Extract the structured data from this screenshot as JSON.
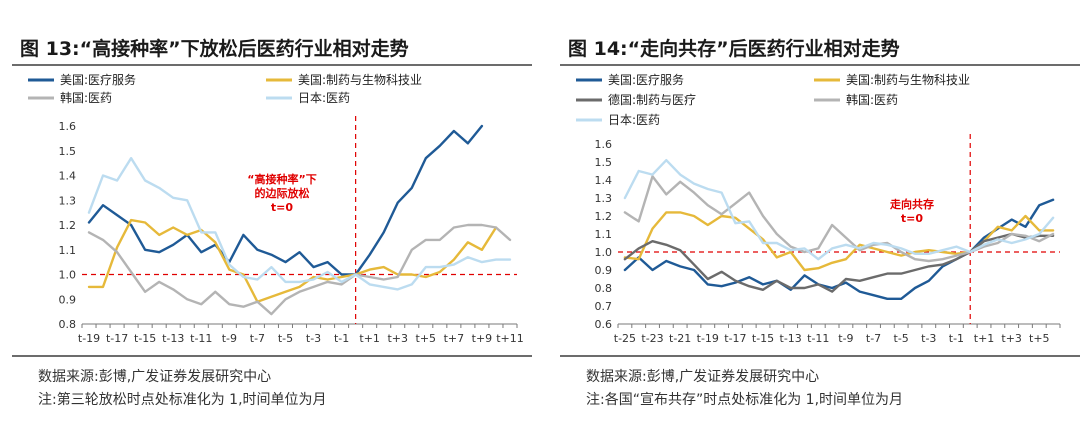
{
  "chart_data": [
    {
      "type": "line",
      "title": "图 13:“高接种率”下放松后医药行业相对走势",
      "source": "数据来源:彭博,广发证券发展研究中心",
      "note": "注:第三轮放松时点处标准化为 1,时间单位为月",
      "x": [
        "t-19",
        "t-18",
        "t-17",
        "t-16",
        "t-15",
        "t-14",
        "t-13",
        "t-12",
        "t-11",
        "t-10",
        "t-9",
        "t-8",
        "t-7",
        "t-6",
        "t-5",
        "t-4",
        "t-3",
        "t-2",
        "t-1",
        "t=0",
        "t+1",
        "t+2",
        "t+3",
        "t+4",
        "t+5",
        "t+6",
        "t+7",
        "t+8",
        "t+9",
        "t+10",
        "t+11"
      ],
      "x_tick_labels": [
        "t-19",
        "t-17",
        "t-15",
        "t-13",
        "t-11",
        "t-9",
        "t-7",
        "t-5",
        "t-3",
        "t-1",
        "t+1",
        "t+3",
        "t+5",
        "t+7",
        "t+9",
        "t+11"
      ],
      "ylim": [
        0.8,
        1.6
      ],
      "y_ticks": [
        "0.8",
        "0.9",
        "1.0",
        "1.1",
        "1.2",
        "1.3",
        "1.4",
        "1.5",
        "1.6"
      ],
      "legend_columns": 2,
      "series": [
        {
          "name": "美国:医疗服务",
          "color": "#1f5a96",
          "values": [
            1.21,
            1.28,
            1.24,
            1.2,
            1.1,
            1.09,
            1.12,
            1.16,
            1.09,
            1.12,
            1.05,
            1.16,
            1.1,
            1.08,
            1.05,
            1.09,
            1.03,
            1.05,
            1.0,
            1.0,
            1.08,
            1.17,
            1.29,
            1.35,
            1.47,
            1.52,
            1.58,
            1.53,
            1.6,
            null,
            null
          ]
        },
        {
          "name": "美国:制药与生物科技业",
          "color": "#e6b93a",
          "values": [
            0.95,
            0.95,
            1.11,
            1.22,
            1.21,
            1.16,
            1.19,
            1.16,
            1.18,
            1.13,
            1.02,
            1.0,
            0.89,
            0.91,
            0.93,
            0.95,
            0.99,
            0.98,
            0.99,
            1.0,
            1.02,
            1.03,
            1.0,
            1.0,
            0.99,
            1.01,
            1.06,
            1.13,
            1.1,
            1.19,
            null
          ]
        },
        {
          "name": "韩国:医药",
          "color": "#b4b4b4",
          "values": [
            1.17,
            1.14,
            1.09,
            1.01,
            0.93,
            0.97,
            0.94,
            0.9,
            0.88,
            0.93,
            0.88,
            0.87,
            0.89,
            0.84,
            0.9,
            0.93,
            0.95,
            0.97,
            0.96,
            1.0,
            0.99,
            0.98,
            0.99,
            1.1,
            1.14,
            1.14,
            1.19,
            1.2,
            1.2,
            1.19,
            1.14
          ]
        },
        {
          "name": "日本:医药",
          "color": "#bcdcf0",
          "values": [
            1.25,
            1.4,
            1.38,
            1.47,
            1.38,
            1.35,
            1.31,
            1.3,
            1.17,
            1.17,
            1.04,
            0.99,
            0.98,
            1.03,
            0.97,
            0.97,
            0.98,
            1.01,
            0.97,
            1.0,
            0.96,
            0.95,
            0.94,
            0.96,
            1.03,
            1.03,
            1.04,
            1.07,
            1.05,
            1.06,
            1.06
          ]
        }
      ],
      "vline_at": "t=0",
      "hline_at": 1.0,
      "annotation": [
        "“高接种率”下",
        "的边际放松",
        "t=0"
      ]
    },
    {
      "type": "line",
      "title": "图 14:“走向共存”后医药行业相对走势",
      "source": "数据来源:彭博,广发证券发展研究中心",
      "note": "注:各国“宣布共存”时点处标准化为 1,时间单位为月",
      "x": [
        "t-25",
        "t-24",
        "t-23",
        "t-22",
        "t-21",
        "t-20",
        "t-19",
        "t-18",
        "t-17",
        "t-16",
        "t-15",
        "t-14",
        "t-13",
        "t-12",
        "t-11",
        "t-10",
        "t-9",
        "t-8",
        "t-7",
        "t-6",
        "t-5",
        "t-4",
        "t-3",
        "t-2",
        "t-1",
        "t=0",
        "t+1",
        "t+2",
        "t+3",
        "t+4",
        "t+5",
        "t+6"
      ],
      "x_tick_labels": [
        "t-25",
        "t-23",
        "t-21",
        "t-19",
        "t-17",
        "t-15",
        "t-13",
        "t-11",
        "t-9",
        "t-7",
        "t-5",
        "t-3",
        "t-1",
        "t+1",
        "t+3",
        "t+5"
      ],
      "ylim": [
        0.6,
        1.6
      ],
      "y_ticks": [
        "0.6",
        "0.7",
        "0.8",
        "0.9",
        "1.0",
        "1.1",
        "1.2",
        "1.3",
        "1.4",
        "1.5",
        "1.6"
      ],
      "legend_columns": 2,
      "series": [
        {
          "name": "美国:医疗服务",
          "color": "#1f5a96",
          "values": [
            0.9,
            0.97,
            0.9,
            0.95,
            0.92,
            0.9,
            0.82,
            0.81,
            0.83,
            0.86,
            0.82,
            0.84,
            0.79,
            0.87,
            0.82,
            0.8,
            0.83,
            0.78,
            0.76,
            0.74,
            0.74,
            0.8,
            0.84,
            0.92,
            0.96,
            1.0,
            1.08,
            1.13,
            1.18,
            1.14,
            1.26,
            1.29
          ]
        },
        {
          "name": "美国:制药与生物科技业",
          "color": "#e6b93a",
          "values": [
            0.97,
            0.96,
            1.13,
            1.22,
            1.22,
            1.2,
            1.15,
            1.2,
            1.19,
            1.13,
            1.07,
            0.97,
            1.0,
            0.9,
            0.91,
            0.94,
            0.96,
            1.04,
            1.02,
            1.0,
            0.98,
            1.0,
            1.01,
            1.0,
            0.99,
            1.0,
            1.06,
            1.14,
            1.12,
            1.2,
            1.12,
            1.12
          ]
        },
        {
          "name": "德国:制药与医疗",
          "color": "#6b6b6b",
          "values": [
            0.96,
            1.02,
            1.06,
            1.04,
            1.01,
            0.93,
            0.85,
            0.89,
            0.84,
            0.81,
            0.79,
            0.84,
            0.8,
            0.8,
            0.82,
            0.78,
            0.85,
            0.84,
            0.86,
            0.88,
            0.88,
            0.9,
            0.92,
            0.93,
            0.96,
            1.0,
            1.06,
            1.08,
            1.1,
            1.08,
            1.09,
            1.09
          ]
        },
        {
          "name": "韩国:医药",
          "color": "#b4b4b4",
          "values": [
            1.22,
            1.17,
            1.42,
            1.32,
            1.39,
            1.33,
            1.26,
            1.21,
            1.27,
            1.33,
            1.2,
            1.1,
            1.03,
            1.0,
            1.02,
            1.15,
            1.08,
            1.01,
            1.04,
            1.05,
            1.0,
            0.96,
            0.95,
            0.96,
            0.98,
            1.0,
            1.03,
            1.05,
            1.1,
            1.09,
            1.06,
            1.1
          ]
        },
        {
          "name": "日本:医药",
          "color": "#bcdcf0",
          "values": [
            1.3,
            1.45,
            1.43,
            1.51,
            1.43,
            1.38,
            1.35,
            1.33,
            1.16,
            1.17,
            1.05,
            1.05,
            1.01,
            1.02,
            0.96,
            1.02,
            1.04,
            1.02,
            1.05,
            1.04,
            1.02,
            0.99,
            0.99,
            1.01,
            1.03,
            1.0,
            1.04,
            1.07,
            1.05,
            1.07,
            1.1,
            1.19
          ]
        }
      ],
      "vline_at": "t=0",
      "hline_at": 1.0,
      "annotation": [
        "走向共存",
        "t=0"
      ]
    }
  ]
}
